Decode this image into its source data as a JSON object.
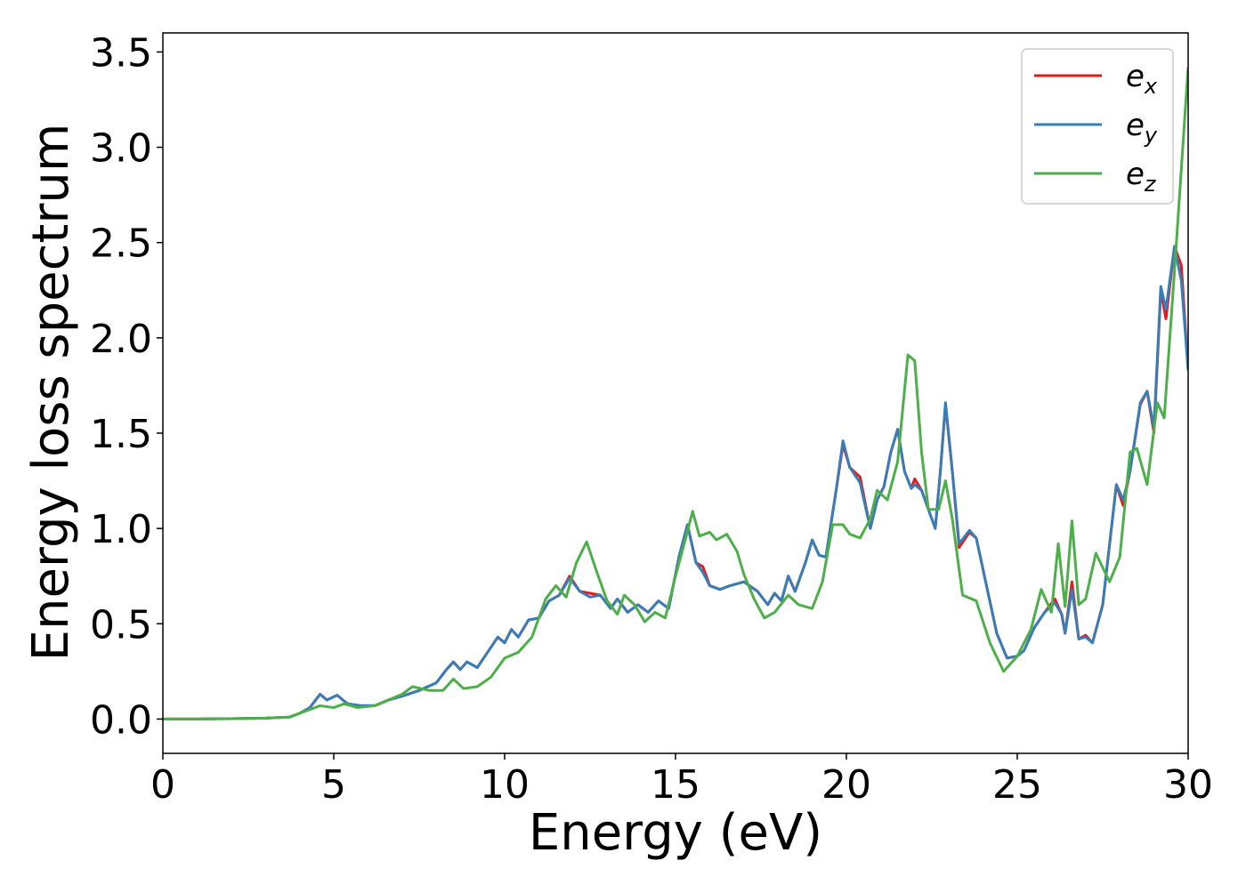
{
  "chart_data": {
    "type": "line",
    "xlabel": "Energy (eV)",
    "ylabel": "Energy loss spectrum",
    "xlim": [
      0,
      30
    ],
    "ylim": [
      -0.18,
      3.6
    ],
    "xticks": [
      0,
      5,
      10,
      15,
      20,
      25,
      30
    ],
    "yticks": [
      {
        "value": 0,
        "label": "0.0"
      },
      {
        "value": 0.5,
        "label": "0.5"
      },
      {
        "value": 1,
        "label": "1.0"
      },
      {
        "value": 1.5,
        "label": "1.5"
      },
      {
        "value": 2,
        "label": "2.0"
      },
      {
        "value": 2.5,
        "label": "2.5"
      },
      {
        "value": 3,
        "label": "3.0"
      },
      {
        "value": 3.5,
        "label": "3.5"
      }
    ],
    "legend": "upper right",
    "series": [
      {
        "name": "ex",
        "color": "#e41a1c",
        "x": [
          0,
          1,
          2,
          3,
          3.7,
          4.0,
          4.3,
          4.6,
          4.8,
          5.1,
          5.4,
          5.8,
          6.2,
          6.6,
          7.0,
          7.5,
          8.0,
          8.3,
          8.5,
          8.7,
          8.9,
          9.2,
          9.5,
          9.8,
          10.0,
          10.2,
          10.4,
          10.7,
          11.0,
          11.3,
          11.6,
          11.9,
          12.2,
          12.5,
          12.8,
          13.1,
          13.3,
          13.6,
          13.9,
          14.2,
          14.5,
          14.8,
          15.1,
          15.35,
          15.6,
          15.8,
          16.0,
          16.3,
          16.6,
          17.0,
          17.4,
          17.7,
          17.9,
          18.1,
          18.3,
          18.5,
          18.8,
          19.0,
          19.2,
          19.4,
          19.7,
          19.9,
          20.1,
          20.4,
          20.7,
          20.9,
          21.1,
          21.3,
          21.5,
          21.7,
          21.9,
          22.0,
          22.2,
          22.4,
          22.6,
          22.75,
          22.9,
          23.1,
          23.3,
          23.6,
          23.8,
          24.1,
          24.4,
          24.7,
          25.0,
          25.2,
          25.5,
          25.8,
          26.1,
          26.3,
          26.4,
          26.6,
          26.8,
          27.0,
          27.2,
          27.5,
          27.9,
          28.1,
          28.3,
          28.6,
          28.8,
          29.0,
          29.2,
          29.35,
          29.6,
          29.8,
          30
        ],
        "values": [
          0,
          0,
          0.002,
          0.005,
          0.01,
          0.03,
          0.06,
          0.13,
          0.1,
          0.125,
          0.08,
          0.07,
          0.07,
          0.1,
          0.12,
          0.15,
          0.19,
          0.26,
          0.3,
          0.26,
          0.3,
          0.27,
          0.35,
          0.43,
          0.4,
          0.47,
          0.43,
          0.52,
          0.53,
          0.62,
          0.65,
          0.75,
          0.67,
          0.66,
          0.65,
          0.58,
          0.63,
          0.56,
          0.6,
          0.56,
          0.62,
          0.58,
          0.85,
          1.02,
          0.82,
          0.8,
          0.7,
          0.68,
          0.7,
          0.72,
          0.67,
          0.6,
          0.66,
          0.62,
          0.75,
          0.67,
          0.82,
          0.94,
          0.86,
          0.85,
          1.2,
          1.44,
          1.32,
          1.27,
          1.0,
          1.15,
          1.22,
          1.4,
          1.52,
          1.3,
          1.21,
          1.26,
          1.2,
          1.1,
          1.0,
          1.3,
          1.65,
          1.3,
          0.9,
          0.98,
          0.95,
          0.7,
          0.45,
          0.32,
          0.33,
          0.36,
          0.48,
          0.56,
          0.63,
          0.55,
          0.45,
          0.72,
          0.42,
          0.44,
          0.4,
          0.6,
          1.23,
          1.12,
          1.3,
          1.65,
          1.72,
          1.5,
          2.25,
          2.1,
          2.48,
          2.38,
          1.83
        ]
      },
      {
        "name": "ey",
        "color": "#377eb8",
        "x": [
          0,
          1,
          2,
          3,
          3.7,
          4.0,
          4.3,
          4.6,
          4.8,
          5.1,
          5.4,
          5.8,
          6.2,
          6.6,
          7.0,
          7.5,
          8.0,
          8.3,
          8.5,
          8.7,
          8.9,
          9.2,
          9.5,
          9.8,
          10.0,
          10.2,
          10.4,
          10.7,
          11.0,
          11.3,
          11.6,
          11.9,
          12.2,
          12.5,
          12.8,
          13.1,
          13.3,
          13.6,
          13.9,
          14.2,
          14.5,
          14.8,
          15.1,
          15.35,
          15.6,
          15.8,
          16.0,
          16.3,
          16.6,
          17.0,
          17.4,
          17.7,
          17.9,
          18.1,
          18.3,
          18.5,
          18.8,
          19.0,
          19.2,
          19.4,
          19.7,
          19.9,
          20.1,
          20.4,
          20.7,
          20.9,
          21.1,
          21.3,
          21.5,
          21.7,
          21.9,
          22.0,
          22.2,
          22.4,
          22.6,
          22.75,
          22.9,
          23.1,
          23.3,
          23.6,
          23.8,
          24.1,
          24.4,
          24.7,
          25.0,
          25.2,
          25.5,
          25.8,
          26.1,
          26.3,
          26.4,
          26.6,
          26.8,
          27.0,
          27.2,
          27.5,
          27.9,
          28.1,
          28.3,
          28.6,
          28.8,
          29.0,
          29.2,
          29.35,
          29.6,
          29.8,
          30
        ],
        "values": [
          0,
          0,
          0.002,
          0.005,
          0.01,
          0.03,
          0.06,
          0.13,
          0.1,
          0.125,
          0.08,
          0.07,
          0.07,
          0.1,
          0.12,
          0.15,
          0.19,
          0.26,
          0.3,
          0.26,
          0.3,
          0.27,
          0.35,
          0.43,
          0.4,
          0.47,
          0.43,
          0.52,
          0.53,
          0.62,
          0.65,
          0.74,
          0.67,
          0.64,
          0.65,
          0.58,
          0.63,
          0.56,
          0.6,
          0.56,
          0.62,
          0.58,
          0.85,
          1.02,
          0.82,
          0.77,
          0.7,
          0.68,
          0.7,
          0.72,
          0.67,
          0.6,
          0.66,
          0.62,
          0.75,
          0.67,
          0.82,
          0.94,
          0.86,
          0.85,
          1.2,
          1.46,
          1.32,
          1.24,
          1.0,
          1.15,
          1.22,
          1.4,
          1.52,
          1.3,
          1.21,
          1.23,
          1.2,
          1.1,
          1.0,
          1.3,
          1.66,
          1.3,
          0.92,
          0.99,
          0.95,
          0.7,
          0.45,
          0.32,
          0.33,
          0.36,
          0.48,
          0.56,
          0.61,
          0.55,
          0.45,
          0.68,
          0.42,
          0.43,
          0.4,
          0.6,
          1.23,
          1.15,
          1.3,
          1.66,
          1.72,
          1.53,
          2.27,
          2.15,
          2.48,
          2.3,
          1.83
        ]
      },
      {
        "name": "ez",
        "color": "#4daf4a",
        "x": [
          0,
          1,
          2,
          3,
          3.7,
          4.0,
          4.6,
          5.0,
          5.3,
          5.7,
          6.2,
          6.6,
          7.0,
          7.3,
          7.8,
          8.2,
          8.5,
          8.8,
          9.2,
          9.6,
          10.0,
          10.4,
          10.8,
          11.2,
          11.5,
          11.8,
          12.1,
          12.4,
          12.7,
          13.0,
          13.3,
          13.5,
          13.8,
          14.1,
          14.4,
          14.7,
          15.0,
          15.3,
          15.5,
          15.7,
          16.0,
          16.2,
          16.5,
          16.8,
          17.0,
          17.3,
          17.6,
          17.9,
          18.3,
          18.6,
          19.0,
          19.3,
          19.6,
          19.9,
          20.1,
          20.4,
          20.7,
          20.9,
          21.2,
          21.5,
          21.8,
          22.0,
          22.2,
          22.4,
          22.7,
          22.9,
          23.1,
          23.4,
          23.8,
          24.2,
          24.6,
          25.0,
          25.4,
          25.7,
          26.0,
          26.2,
          26.4,
          26.6,
          26.8,
          27.0,
          27.3,
          27.7,
          28.0,
          28.3,
          28.5,
          28.8,
          29.1,
          29.3,
          29.6,
          30
        ],
        "values": [
          0,
          0,
          0.002,
          0.005,
          0.01,
          0.03,
          0.07,
          0.06,
          0.08,
          0.06,
          0.07,
          0.1,
          0.13,
          0.17,
          0.15,
          0.15,
          0.21,
          0.16,
          0.17,
          0.22,
          0.32,
          0.35,
          0.43,
          0.63,
          0.7,
          0.64,
          0.82,
          0.93,
          0.77,
          0.62,
          0.55,
          0.65,
          0.6,
          0.51,
          0.56,
          0.53,
          0.75,
          0.95,
          1.09,
          0.96,
          0.98,
          0.94,
          0.97,
          0.88,
          0.76,
          0.63,
          0.53,
          0.56,
          0.65,
          0.6,
          0.58,
          0.72,
          1.02,
          1.02,
          0.97,
          0.95,
          1.05,
          1.2,
          1.15,
          1.35,
          1.91,
          1.88,
          1.4,
          1.1,
          1.1,
          1.25,
          1.05,
          0.65,
          0.62,
          0.4,
          0.25,
          0.33,
          0.47,
          0.68,
          0.56,
          0.92,
          0.59,
          1.04,
          0.6,
          0.63,
          0.87,
          0.72,
          0.85,
          1.4,
          1.42,
          1.23,
          1.66,
          1.58,
          2.35,
          3.42
        ]
      }
    ]
  }
}
